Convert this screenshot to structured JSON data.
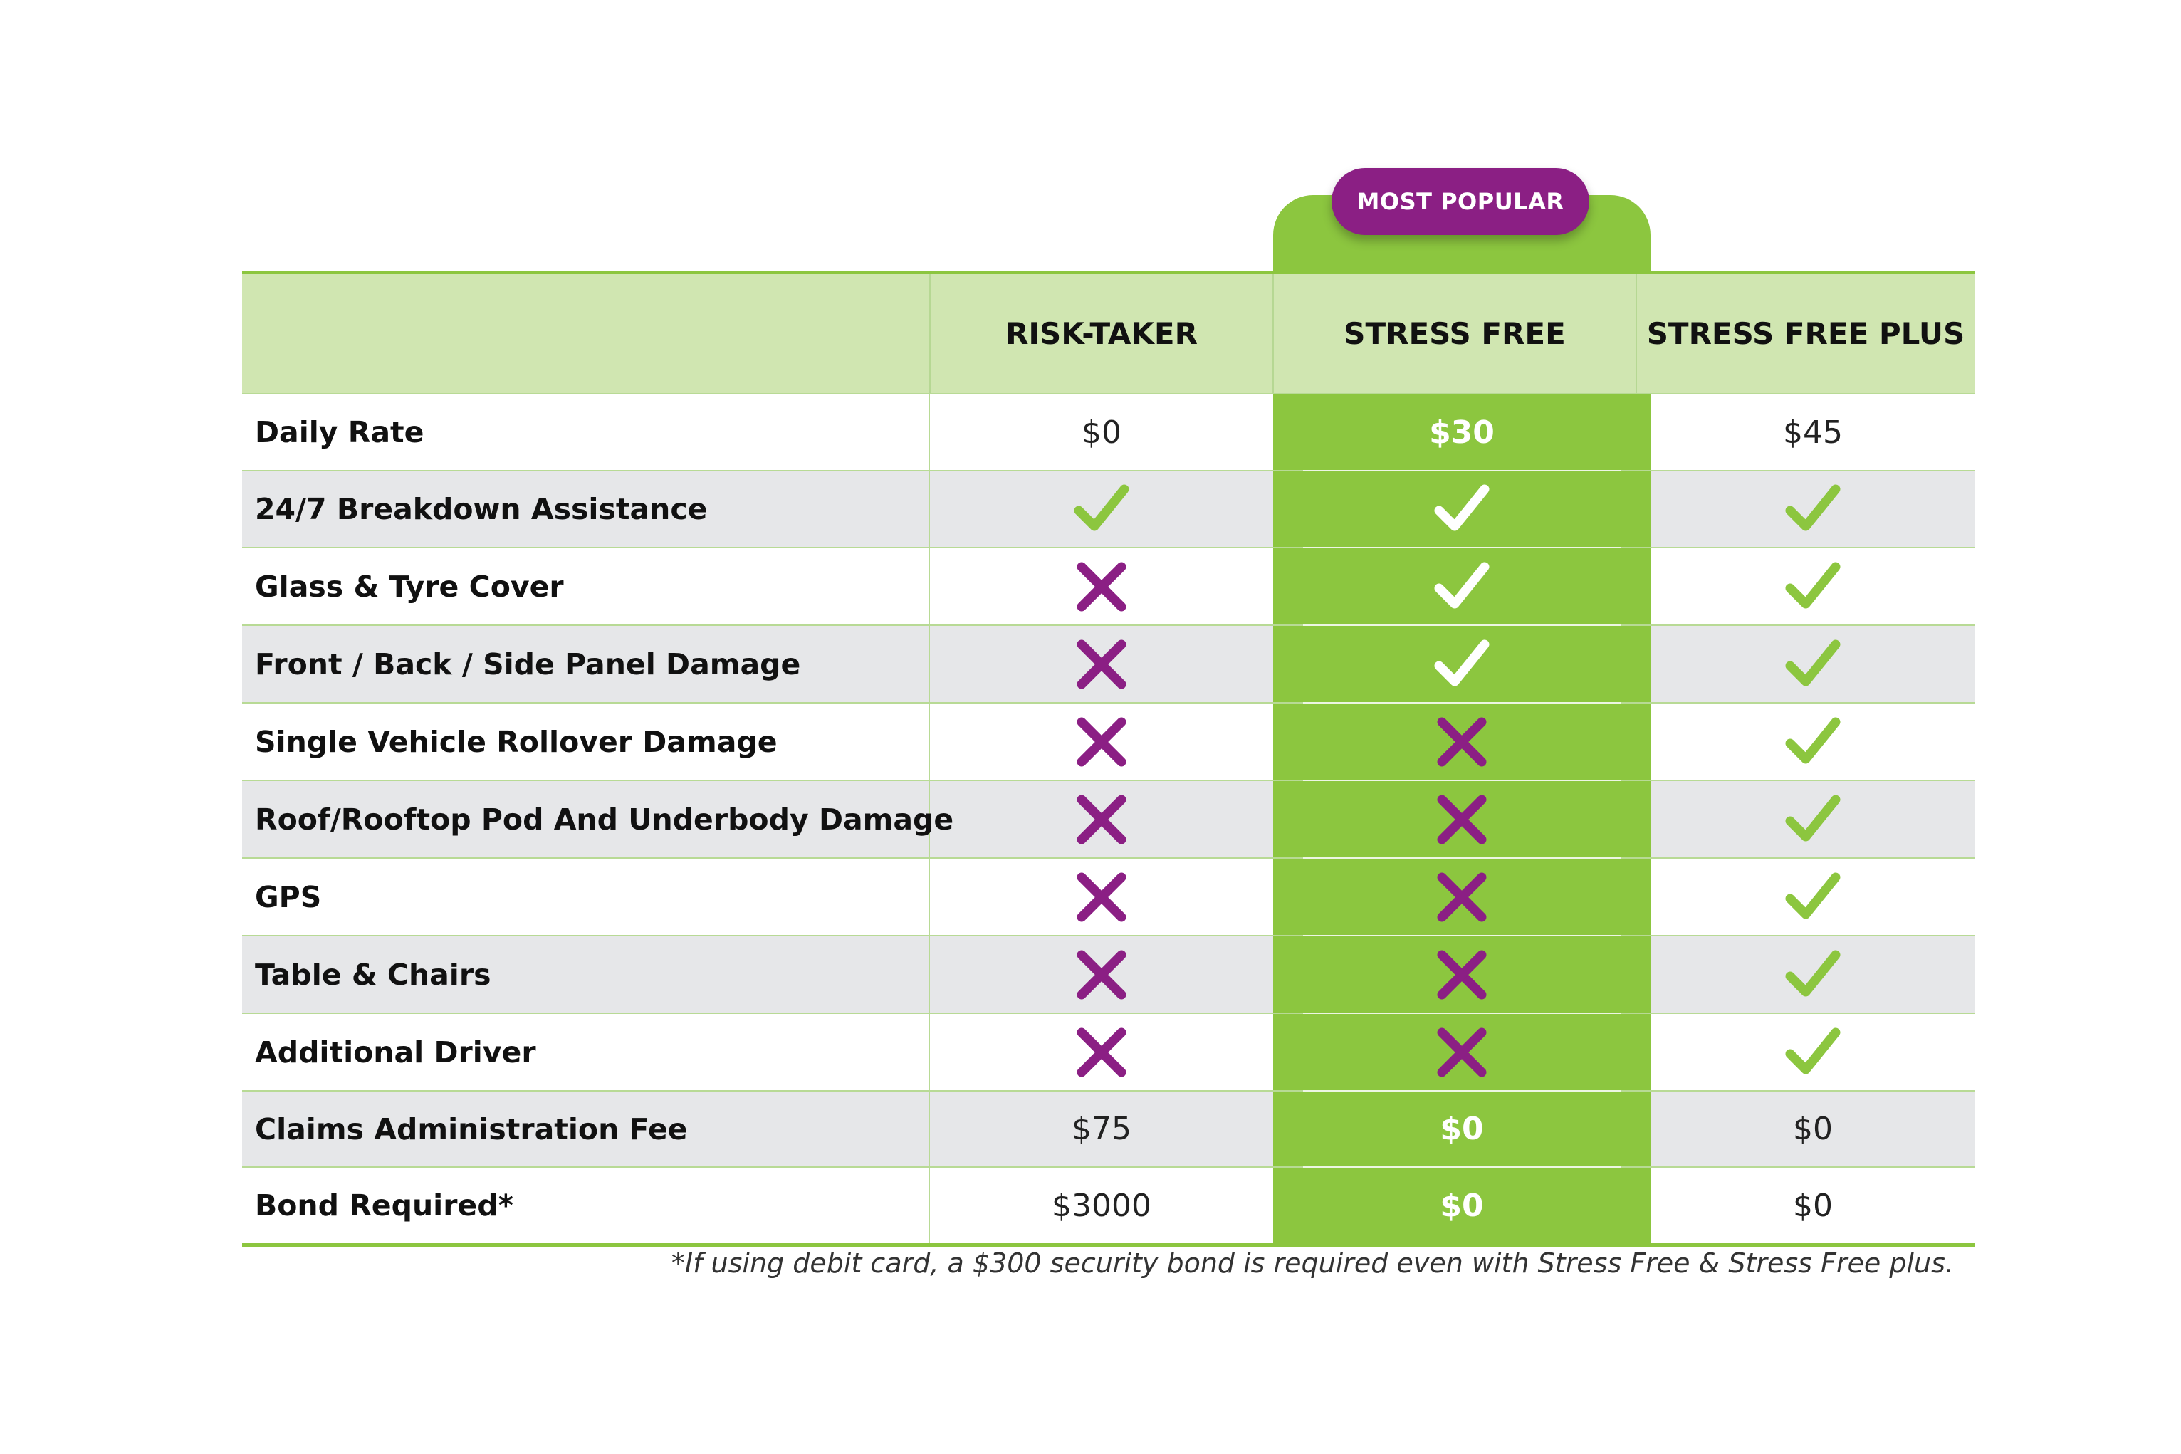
{
  "badge": "MOST POPULAR",
  "columns": [
    "RISK-TAKER",
    "STRESS FREE",
    "STRESS FREE PLUS"
  ],
  "colors": {
    "green": "#8cc63f",
    "purple": "#8b1f84",
    "header_bg": "#d0e6b1",
    "shade": "#e6e7e9"
  },
  "rows": [
    {
      "label": "Daily Rate",
      "cells": [
        "$0",
        "$30",
        "$45"
      ]
    },
    {
      "label": "24/7 Breakdown Assistance",
      "cells": [
        "check",
        "check",
        "check"
      ]
    },
    {
      "label": "Glass & Tyre Cover",
      "cells": [
        "cross",
        "check",
        "check"
      ]
    },
    {
      "label": "Front / Back / Side Panel Damage",
      "cells": [
        "cross",
        "check",
        "check"
      ]
    },
    {
      "label": "Single Vehicle Rollover Damage",
      "cells": [
        "cross",
        "cross",
        "check"
      ]
    },
    {
      "label": "Roof/Rooftop Pod And Underbody Damage",
      "cells": [
        "cross",
        "cross",
        "check"
      ]
    },
    {
      "label": "GPS",
      "cells": [
        "cross",
        "cross",
        "check"
      ]
    },
    {
      "label": "Table & Chairs",
      "cells": [
        "cross",
        "cross",
        "check"
      ]
    },
    {
      "label": "Additional Driver",
      "cells": [
        "cross",
        "cross",
        "check"
      ]
    },
    {
      "label": "Claims Administration Fee",
      "cells": [
        "$75",
        "$0",
        "$0"
      ]
    },
    {
      "label": "Bond Required*",
      "cells": [
        "$3000",
        "$0",
        "$0"
      ]
    }
  ],
  "footnote": "*If using debit card, a $300 security bond is required even with Stress Free & Stress Free plus."
}
